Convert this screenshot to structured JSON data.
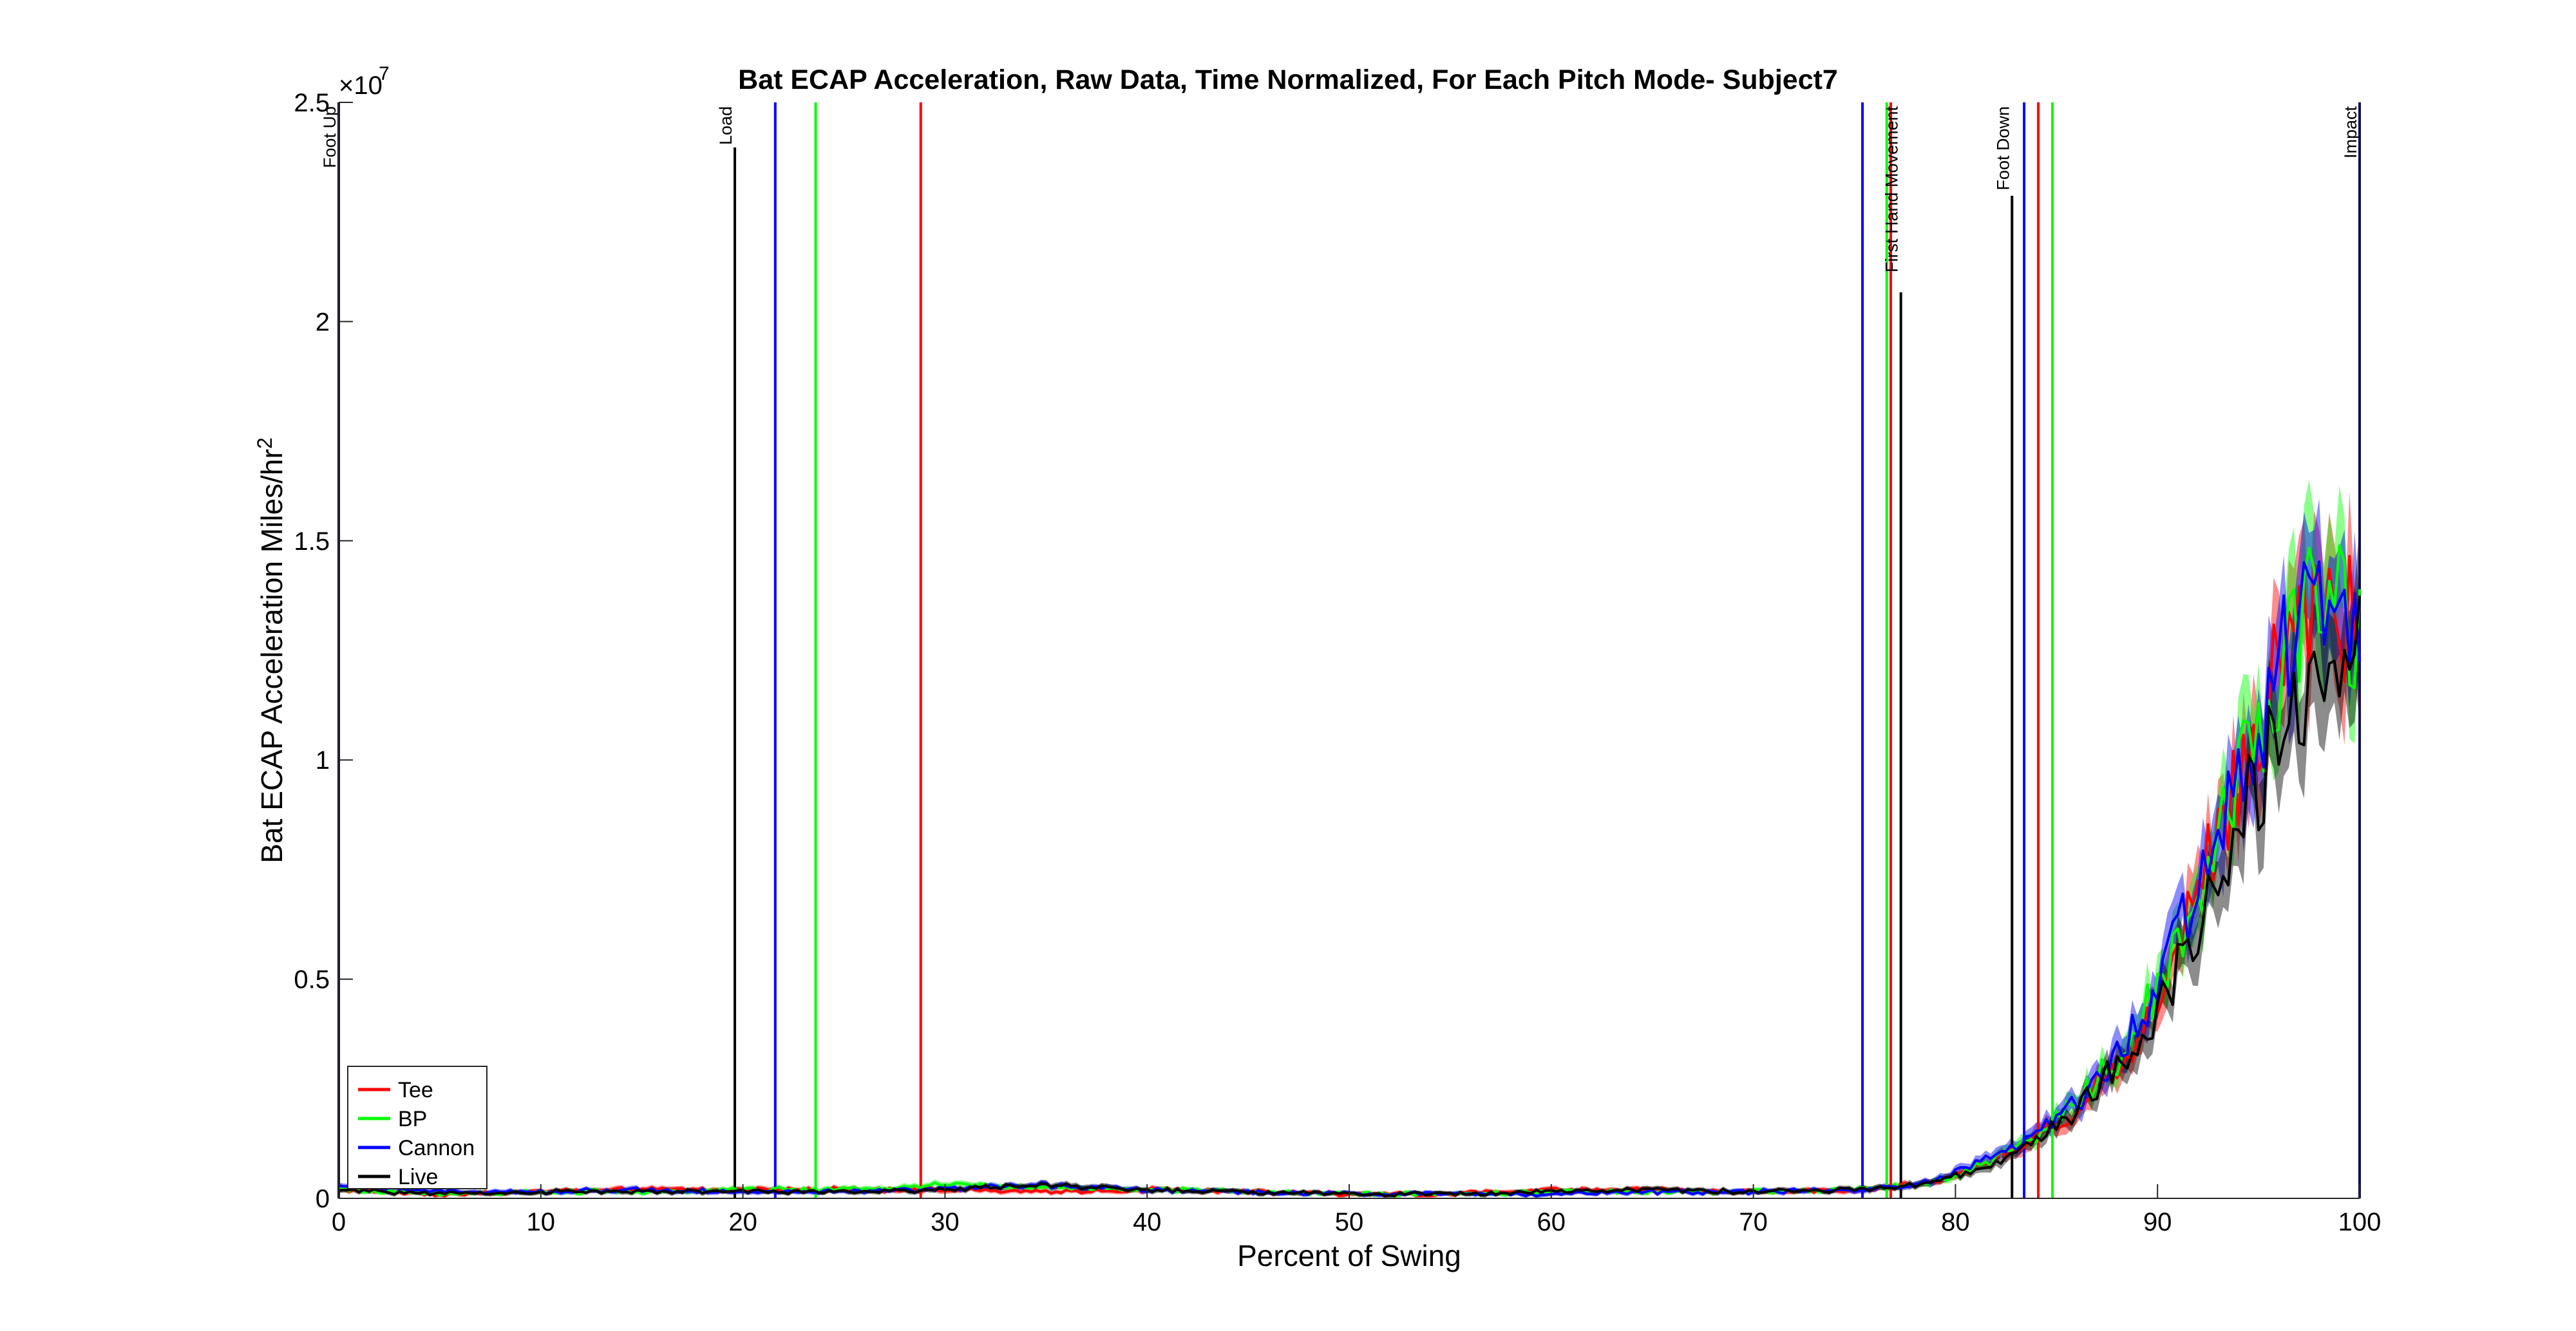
{
  "chart_data": {
    "type": "line",
    "title": "Bat ECAP Acceleration, Raw Data, Time Normalized, For Each Pitch Mode- Subject7",
    "xlabel": "Percent of Swing",
    "ylabel_main": "Bat ECAP Acceleration Miles/hr",
    "ylabel_sup": "2",
    "exponent_base": "×10",
    "exponent_power": "7",
    "xlim": [
      0,
      100
    ],
    "ylim": [
      0,
      2.5
    ],
    "y_scale_factor": 10000000,
    "x_ticks": [
      0,
      10,
      20,
      30,
      40,
      50,
      60,
      70,
      80,
      90,
      100
    ],
    "x_tick_labels": [
      "0",
      "10",
      "20",
      "30",
      "40",
      "50",
      "60",
      "70",
      "80",
      "90",
      "100"
    ],
    "y_ticks": [
      0,
      0.5,
      1,
      1.5,
      2,
      2.5
    ],
    "y_tick_labels": [
      "0",
      "0.5",
      "1",
      "1.5",
      "2",
      "2.5"
    ],
    "grid": false,
    "legend_position": "bottom-left",
    "series": [
      {
        "name": "Tee",
        "color": "#ff0000",
        "x": [
          0,
          5,
          10,
          15,
          20,
          25,
          30,
          35,
          40,
          45,
          50,
          55,
          60,
          65,
          70,
          75,
          78,
          80,
          82,
          84,
          86,
          88,
          90,
          92,
          94,
          96,
          97,
          98,
          99,
          100
        ],
        "y": [
          0.02,
          0.01,
          0.015,
          0.02,
          0.02,
          0.02,
          0.02,
          0.015,
          0.02,
          0.015,
          0.01,
          0.01,
          0.02,
          0.02,
          0.015,
          0.02,
          0.03,
          0.05,
          0.09,
          0.14,
          0.2,
          0.3,
          0.45,
          0.7,
          0.95,
          1.25,
          1.35,
          1.4,
          1.35,
          1.3
        ]
      },
      {
        "name": "BP",
        "color": "#00ff00",
        "x": [
          0,
          5,
          10,
          15,
          20,
          25,
          30,
          35,
          40,
          45,
          50,
          55,
          60,
          65,
          70,
          75,
          78,
          80,
          82,
          84,
          86,
          88,
          90,
          92,
          94,
          96,
          97,
          98,
          99,
          100
        ],
        "y": [
          0.02,
          0.01,
          0.015,
          0.015,
          0.02,
          0.02,
          0.03,
          0.025,
          0.02,
          0.015,
          0.01,
          0.01,
          0.015,
          0.015,
          0.015,
          0.02,
          0.03,
          0.05,
          0.09,
          0.14,
          0.22,
          0.32,
          0.48,
          0.7,
          0.95,
          1.2,
          1.3,
          1.4,
          1.35,
          1.3
        ]
      },
      {
        "name": "Cannon",
        "color": "#0000ff",
        "x": [
          0,
          5,
          10,
          15,
          20,
          25,
          30,
          35,
          40,
          45,
          50,
          55,
          60,
          65,
          70,
          75,
          78,
          80,
          82,
          84,
          86,
          88,
          90,
          92,
          94,
          96,
          97,
          98,
          99,
          100
        ],
        "y": [
          0.03,
          0.015,
          0.015,
          0.02,
          0.015,
          0.015,
          0.02,
          0.03,
          0.02,
          0.015,
          0.01,
          0.01,
          0.01,
          0.015,
          0.015,
          0.02,
          0.03,
          0.06,
          0.1,
          0.15,
          0.22,
          0.32,
          0.48,
          0.72,
          0.98,
          1.2,
          1.3,
          1.35,
          1.35,
          1.3
        ]
      },
      {
        "name": "Live",
        "color": "#000000",
        "x": [
          0,
          5,
          10,
          15,
          20,
          25,
          30,
          35,
          40,
          45,
          50,
          55,
          60,
          65,
          70,
          75,
          78,
          80,
          82,
          84,
          86,
          88,
          90,
          92,
          94,
          96,
          97,
          98,
          99,
          100
        ],
        "y": [
          0.02,
          0.01,
          0.015,
          0.015,
          0.015,
          0.015,
          0.02,
          0.03,
          0.02,
          0.015,
          0.01,
          0.01,
          0.015,
          0.02,
          0.015,
          0.02,
          0.03,
          0.05,
          0.08,
          0.13,
          0.2,
          0.3,
          0.42,
          0.62,
          0.85,
          1.05,
          1.15,
          1.2,
          1.25,
          1.3
        ]
      }
    ],
    "event_lines": [
      {
        "x": 0,
        "color": "#0b0b4d",
        "label": "Foot Up"
      },
      {
        "x": 19.6,
        "color": "#000000",
        "label": "Load"
      },
      {
        "x": 21.6,
        "color": "#0000ff",
        "label": ""
      },
      {
        "x": 23.6,
        "color": "#00ff00",
        "label": ""
      },
      {
        "x": 28.8,
        "color": "#ff0000",
        "label": ""
      },
      {
        "x": 75.4,
        "color": "#0000ff",
        "label": ""
      },
      {
        "x": 76.6,
        "color": "#00ff00",
        "label": ""
      },
      {
        "x": 76.8,
        "color": "#ff0000",
        "label": ""
      },
      {
        "x": 77.3,
        "color": "#000000",
        "label": "First Hand Movement"
      },
      {
        "x": 82.8,
        "color": "#000000",
        "label": "Foot Down"
      },
      {
        "x": 83.4,
        "color": "#0000ff",
        "label": ""
      },
      {
        "x": 84.1,
        "color": "#ff0000",
        "label": ""
      },
      {
        "x": 84.8,
        "color": "#00ff00",
        "label": ""
      },
      {
        "x": 100,
        "color": "#0b0b4d",
        "label": "Impact"
      }
    ]
  }
}
